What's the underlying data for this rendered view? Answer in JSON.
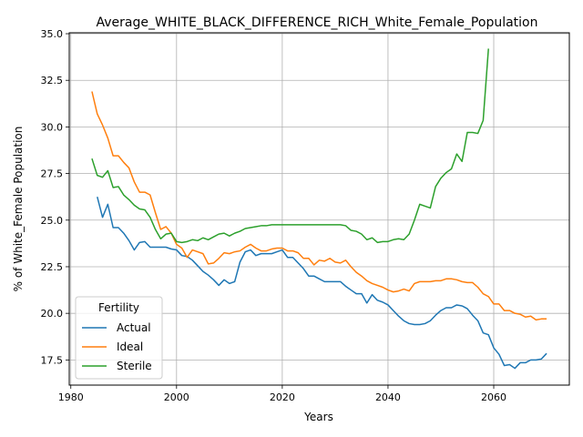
{
  "chart_data": {
    "type": "line",
    "title": "Average_WHITE_BLACK_DIFFERENCE_RICH_White_Female_Population",
    "xlabel": "Years",
    "ylabel": "% of White_Female Population",
    "xlim": [
      1979.7,
      2074.3
    ],
    "ylim": [
      16.15,
      35.05
    ],
    "x_ticks": [
      1980,
      2000,
      2020,
      2040,
      2060
    ],
    "y_ticks": [
      17.5,
      20.0,
      22.5,
      25.0,
      27.5,
      30.0,
      32.5,
      35.0
    ],
    "x_tick_labels": [
      "1980",
      "2000",
      "2020",
      "2040",
      "2060"
    ],
    "y_tick_labels": [
      "17.5",
      "20.0",
      "22.5",
      "25.0",
      "27.5",
      "30.0",
      "32.5",
      "35.0"
    ],
    "grid": true,
    "legend": {
      "title": "Fertility",
      "position": "lower-left"
    },
    "series": [
      {
        "name": "Actual",
        "color": "#1f77b4",
        "x": [
          1985,
          1986,
          1987,
          1988,
          1989,
          1990,
          1991,
          1992,
          1993,
          1994,
          1995,
          1996,
          1997,
          1998,
          1999,
          2000,
          2001,
          2002,
          2003,
          2004,
          2005,
          2006,
          2007,
          2008,
          2009,
          2010,
          2011,
          2012,
          2013,
          2014,
          2015,
          2016,
          2017,
          2018,
          2019,
          2020,
          2021,
          2022,
          2023,
          2024,
          2025,
          2026,
          2027,
          2028,
          2029,
          2030,
          2031,
          2032,
          2033,
          2034,
          2035,
          2036,
          2037,
          2038,
          2039,
          2040,
          2041,
          2042,
          2043,
          2044,
          2045,
          2046,
          2047,
          2048,
          2049,
          2050,
          2051,
          2052,
          2053,
          2054,
          2055,
          2056,
          2057,
          2058,
          2059,
          2060,
          2061,
          2062,
          2063,
          2064,
          2065,
          2066,
          2067,
          2068,
          2069,
          2070
        ],
        "y": [
          26.25,
          25.15,
          25.85,
          24.6,
          24.6,
          24.3,
          23.9,
          23.4,
          23.8,
          23.85,
          23.55,
          23.55,
          23.55,
          23.55,
          23.45,
          23.4,
          23.1,
          23.05,
          22.85,
          22.55,
          22.25,
          22.05,
          21.8,
          21.5,
          21.8,
          21.6,
          21.7,
          22.75,
          23.3,
          23.4,
          23.1,
          23.2,
          23.2,
          23.2,
          23.3,
          23.4,
          23.0,
          23.0,
          22.7,
          22.4,
          22.0,
          22.0,
          21.85,
          21.7,
          21.7,
          21.7,
          21.7,
          21.45,
          21.25,
          21.05,
          21.05,
          20.55,
          21.0,
          20.7,
          20.6,
          20.45,
          20.15,
          19.85,
          19.6,
          19.45,
          19.4,
          19.4,
          19.45,
          19.6,
          19.9,
          20.15,
          20.3,
          20.3,
          20.45,
          20.4,
          20.25,
          19.9,
          19.6,
          18.95,
          18.85,
          18.15,
          17.8,
          17.2,
          17.25,
          17.05,
          17.35,
          17.35,
          17.5,
          17.5,
          17.55,
          17.85
        ]
      },
      {
        "name": "Ideal",
        "color": "#ff7f0e",
        "x": [
          1984,
          1985,
          1986,
          1987,
          1988,
          1989,
          1990,
          1991,
          1992,
          1993,
          1994,
          1995,
          1996,
          1997,
          1998,
          1999,
          2000,
          2001,
          2002,
          2003,
          2004,
          2005,
          2006,
          2007,
          2008,
          2009,
          2010,
          2011,
          2012,
          2013,
          2014,
          2015,
          2016,
          2017,
          2018,
          2019,
          2020,
          2021,
          2022,
          2023,
          2024,
          2025,
          2026,
          2027,
          2028,
          2029,
          2030,
          2031,
          2032,
          2033,
          2034,
          2035,
          2036,
          2037,
          2038,
          2039,
          2040,
          2041,
          2042,
          2043,
          2044,
          2045,
          2046,
          2047,
          2048,
          2049,
          2050,
          2051,
          2052,
          2053,
          2054,
          2055,
          2056,
          2057,
          2058,
          2059,
          2060,
          2061,
          2062,
          2063,
          2064,
          2065,
          2066,
          2067,
          2068,
          2069,
          2070
        ],
        "y": [
          31.9,
          30.7,
          30.1,
          29.4,
          28.45,
          28.45,
          28.1,
          27.8,
          27.05,
          26.5,
          26.5,
          26.35,
          25.4,
          24.5,
          24.65,
          24.3,
          23.7,
          23.5,
          23.0,
          23.4,
          23.3,
          23.2,
          22.65,
          22.7,
          22.95,
          23.25,
          23.2,
          23.3,
          23.35,
          23.55,
          23.7,
          23.5,
          23.35,
          23.35,
          23.45,
          23.5,
          23.5,
          23.35,
          23.35,
          23.25,
          22.95,
          22.95,
          22.6,
          22.85,
          22.8,
          22.95,
          22.75,
          22.7,
          22.85,
          22.5,
          22.2,
          22.0,
          21.75,
          21.6,
          21.5,
          21.4,
          21.25,
          21.15,
          21.2,
          21.3,
          21.2,
          21.6,
          21.7,
          21.7,
          21.7,
          21.75,
          21.75,
          21.85,
          21.85,
          21.8,
          21.7,
          21.65,
          21.65,
          21.4,
          21.05,
          20.9,
          20.5,
          20.5,
          20.15,
          20.15,
          20.0,
          19.95,
          19.8,
          19.85,
          19.65,
          19.7,
          19.7
        ]
      },
      {
        "name": "Sterile",
        "color": "#2ca02c",
        "x": [
          1984,
          1985,
          1986,
          1987,
          1988,
          1989,
          1990,
          1991,
          1992,
          1993,
          1994,
          1995,
          1996,
          1997,
          1998,
          1999,
          2000,
          2001,
          2002,
          2003,
          2004,
          2005,
          2006,
          2007,
          2008,
          2009,
          2010,
          2011,
          2012,
          2013,
          2014,
          2015,
          2016,
          2017,
          2018,
          2019,
          2020,
          2021,
          2022,
          2023,
          2024,
          2025,
          2026,
          2027,
          2028,
          2029,
          2030,
          2031,
          2032,
          2033,
          2034,
          2035,
          2036,
          2037,
          2038,
          2039,
          2040,
          2041,
          2042,
          2043,
          2044,
          2045,
          2046,
          2047,
          2048,
          2049,
          2050,
          2051,
          2052,
          2053,
          2054,
          2055,
          2056,
          2057,
          2058,
          2059
        ],
        "y": [
          28.3,
          27.4,
          27.3,
          27.65,
          26.75,
          26.8,
          26.35,
          26.1,
          25.8,
          25.6,
          25.55,
          25.15,
          24.5,
          24.0,
          24.25,
          24.3,
          23.85,
          23.8,
          23.85,
          23.95,
          23.9,
          24.05,
          23.95,
          24.1,
          24.25,
          24.3,
          24.15,
          24.3,
          24.4,
          24.55,
          24.6,
          24.65,
          24.7,
          24.7,
          24.75,
          24.75,
          24.75,
          24.75,
          24.75,
          24.75,
          24.75,
          24.75,
          24.75,
          24.75,
          24.75,
          24.75,
          24.75,
          24.75,
          24.7,
          24.45,
          24.4,
          24.25,
          23.95,
          24.05,
          23.8,
          23.85,
          23.85,
          23.95,
          24.0,
          23.95,
          24.25,
          25.0,
          25.85,
          25.75,
          25.65,
          26.8,
          27.25,
          27.55,
          27.75,
          28.55,
          28.15,
          29.7,
          29.7,
          29.65,
          30.35,
          34.2
        ]
      }
    ]
  }
}
